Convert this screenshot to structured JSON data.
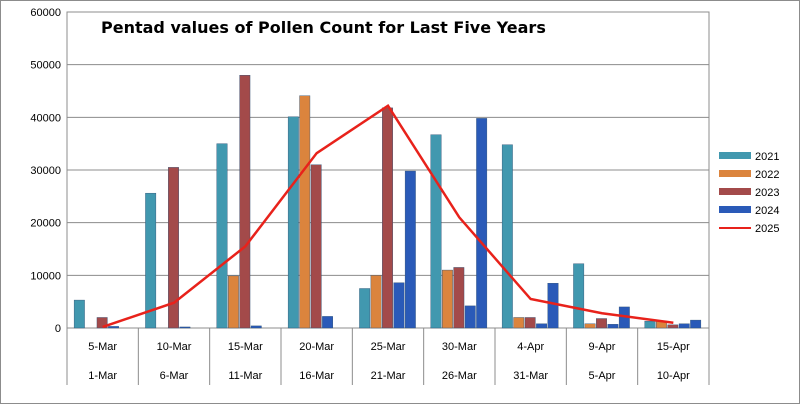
{
  "chart_data": {
    "type": "bar",
    "title": "Pentad values of Pollen Count for Last Five Years",
    "categories_top": [
      "5-Mar",
      "10-Mar",
      "15-Mar",
      "20-Mar",
      "25-Mar",
      "30-Mar",
      "4-Apr",
      "9-Apr",
      "15-Apr"
    ],
    "categories_bottom": [
      "1-Mar",
      "6-Mar",
      "11-Mar",
      "16-Mar",
      "21-Mar",
      "26-Mar",
      "31-Mar",
      "5-Apr",
      "10-Apr"
    ],
    "ylim": [
      0,
      60000
    ],
    "yticks": [
      0,
      10000,
      20000,
      30000,
      40000,
      50000,
      60000
    ],
    "grid": true,
    "legend_position": "right",
    "series": [
      {
        "name": "2021",
        "kind": "bar",
        "color": "#4198af",
        "values": [
          5300,
          25600,
          35000,
          40100,
          7500,
          36700,
          34800,
          12200,
          1300
        ]
      },
      {
        "name": "2022",
        "kind": "bar",
        "color": "#db843d",
        "values": [
          0,
          0,
          9900,
          44100,
          10000,
          11000,
          2000,
          800,
          1300
        ]
      },
      {
        "name": "2023",
        "kind": "bar",
        "color": "#a34a4a",
        "values": [
          2000,
          30500,
          48000,
          31000,
          41800,
          11500,
          2000,
          1800,
          600
        ]
      },
      {
        "name": "2024",
        "kind": "bar",
        "color": "#2a5ab8",
        "values": [
          300,
          200,
          400,
          2200,
          8600,
          4200,
          800,
          700,
          800
        ]
      },
      {
        "name": "2025",
        "kind": "line",
        "color": "#e8221b",
        "values": [
          200,
          4800,
          15500,
          33200,
          42200,
          21000,
          5500,
          2800,
          1000
        ]
      }
    ],
    "extra_bars": [
      {
        "series": "2024",
        "category_index": 4,
        "value": 29800
      },
      {
        "series": "2024",
        "category_index": 5,
        "value": 39800
      },
      {
        "series": "2024",
        "category_index": 6,
        "value": 8500
      },
      {
        "series": "2024",
        "category_index": 7,
        "value": 4000
      },
      {
        "series": "2024",
        "category_index": 8,
        "value": 1500
      }
    ]
  }
}
